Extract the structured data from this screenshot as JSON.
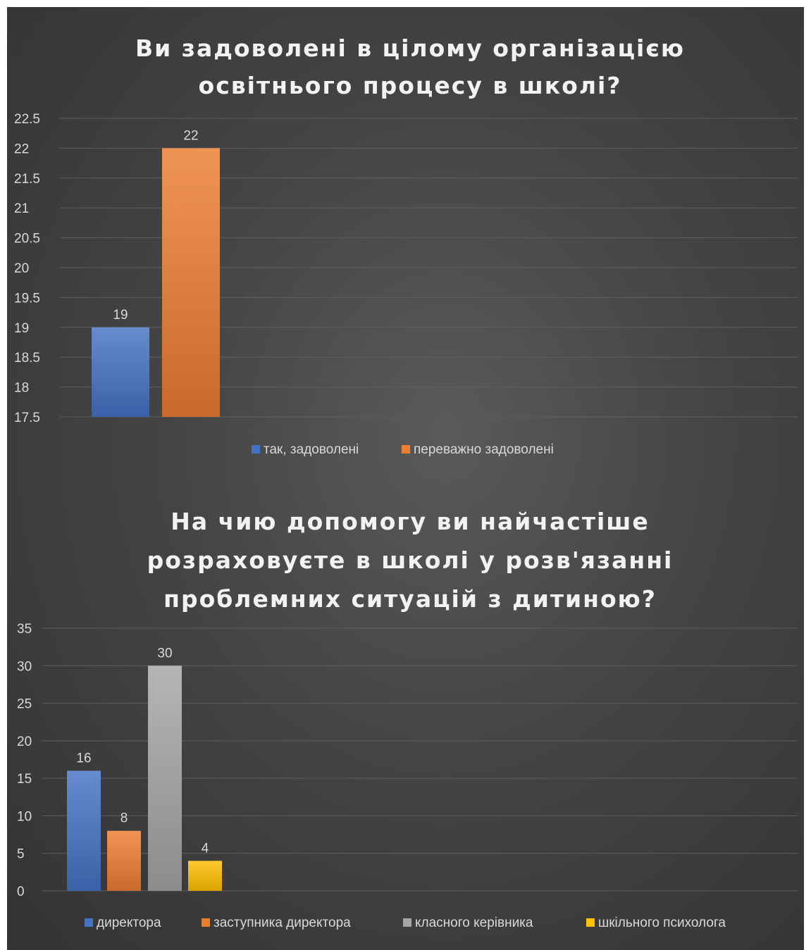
{
  "chart_data": [
    {
      "type": "bar",
      "title": "Ви задоволені в цілому організацією освітнього процесу в школі?",
      "title_lines": [
        "Ви задоволені в цілому організацією",
        "освітнього процесу в школі?"
      ],
      "series": [
        {
          "name": "так, задоволені",
          "values": [
            19
          ],
          "color": "#4472c4"
        },
        {
          "name": "переважно задоволені",
          "values": [
            22
          ],
          "color": "#ed7d31"
        }
      ],
      "ylim": [
        17.5,
        22.5
      ],
      "yticks": [
        "22.5",
        "22",
        "21.5",
        "21",
        "20.5",
        "20",
        "19.5",
        "19",
        "18.5",
        "18",
        "17.5"
      ],
      "ytick_values": [
        22.5,
        22,
        21.5,
        21,
        20.5,
        20,
        19.5,
        19,
        18.5,
        18,
        17.5
      ],
      "data_labels": [
        "19",
        "22"
      ],
      "grid": true,
      "legend_position": "bottom"
    },
    {
      "type": "bar",
      "title": "На чию допомогу ви найчастіше розраховуєте в школі у розв'язанні проблемних ситуацій з дитиною?",
      "title_lines": [
        "На чию допомогу ви найчастіше",
        "розраховуєте в школі у розв'язанні",
        "проблемних ситуацій з дитиною?"
      ],
      "series": [
        {
          "name": "директора",
          "values": [
            16
          ],
          "color": "#4472c4"
        },
        {
          "name": "заступника директора",
          "values": [
            8
          ],
          "color": "#ed7d31"
        },
        {
          "name": "класного керівника",
          "values": [
            30
          ],
          "color": "#a5a5a5"
        },
        {
          "name": "шкільного психолога",
          "values": [
            4
          ],
          "color": "#ffc000"
        }
      ],
      "ylim": [
        0,
        35
      ],
      "yticks": [
        "35",
        "30",
        "25",
        "20",
        "15",
        "10",
        "5",
        "0"
      ],
      "ytick_values": [
        35,
        30,
        25,
        20,
        15,
        10,
        5,
        0
      ],
      "data_labels": [
        "16",
        "8",
        "30",
        "4"
      ],
      "grid": true,
      "legend_position": "bottom"
    }
  ]
}
